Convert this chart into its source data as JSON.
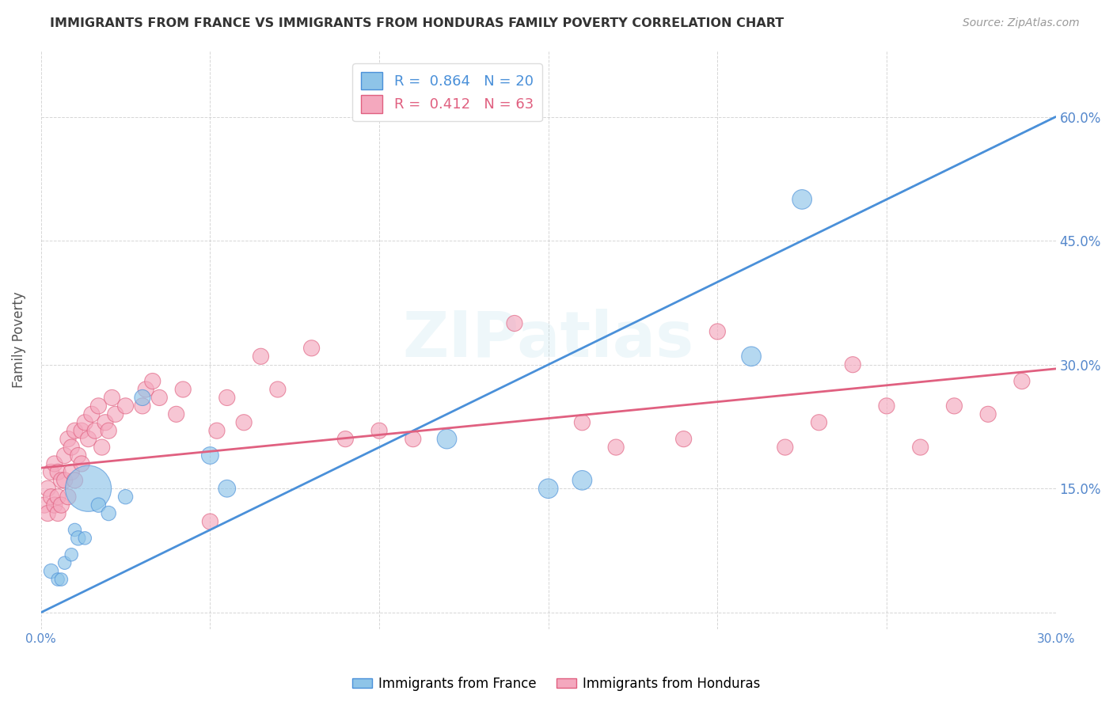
{
  "title": "IMMIGRANTS FROM FRANCE VS IMMIGRANTS FROM HONDURAS FAMILY POVERTY CORRELATION CHART",
  "source": "Source: ZipAtlas.com",
  "ylabel": "Family Poverty",
  "xlim": [
    0.0,
    0.3
  ],
  "ylim": [
    -0.02,
    0.68
  ],
  "yticks": [
    0.0,
    0.15,
    0.3,
    0.45,
    0.6
  ],
  "xticks": [
    0.0,
    0.05,
    0.1,
    0.15,
    0.2,
    0.25,
    0.3
  ],
  "france_R": 0.864,
  "france_N": 20,
  "honduras_R": 0.412,
  "honduras_N": 63,
  "france_color": "#8ec4e8",
  "honduras_color": "#f4a8be",
  "france_line_color": "#4a90d9",
  "honduras_line_color": "#e06080",
  "axis_label_color": "#5588cc",
  "watermark": "ZIPatlas",
  "france_line_x0": 0.0,
  "france_line_y0": 0.0,
  "france_line_x1": 0.3,
  "france_line_y1": 0.6,
  "honduras_line_x0": 0.0,
  "honduras_line_y0": 0.175,
  "honduras_line_x1": 0.3,
  "honduras_line_y1": 0.295,
  "france_x": [
    0.003,
    0.005,
    0.006,
    0.007,
    0.009,
    0.01,
    0.011,
    0.013,
    0.014,
    0.017,
    0.02,
    0.025,
    0.03,
    0.05,
    0.055,
    0.12,
    0.15,
    0.16,
    0.21,
    0.225
  ],
  "france_y": [
    0.05,
    0.04,
    0.04,
    0.06,
    0.07,
    0.1,
    0.09,
    0.09,
    0.15,
    0.13,
    0.12,
    0.14,
    0.26,
    0.19,
    0.15,
    0.21,
    0.15,
    0.16,
    0.31,
    0.5
  ],
  "france_size": [
    25,
    20,
    20,
    20,
    20,
    20,
    25,
    20,
    250,
    25,
    25,
    25,
    30,
    35,
    35,
    45,
    45,
    45,
    45,
    45
  ],
  "honduras_x": [
    0.001,
    0.002,
    0.002,
    0.003,
    0.003,
    0.004,
    0.004,
    0.005,
    0.005,
    0.005,
    0.006,
    0.006,
    0.007,
    0.007,
    0.008,
    0.008,
    0.009,
    0.009,
    0.01,
    0.01,
    0.011,
    0.012,
    0.012,
    0.013,
    0.014,
    0.015,
    0.016,
    0.017,
    0.018,
    0.019,
    0.02,
    0.021,
    0.022,
    0.025,
    0.03,
    0.031,
    0.033,
    0.035,
    0.04,
    0.042,
    0.05,
    0.052,
    0.055,
    0.06,
    0.065,
    0.07,
    0.08,
    0.09,
    0.1,
    0.11,
    0.14,
    0.17,
    0.2,
    0.22,
    0.24,
    0.26,
    0.27,
    0.28,
    0.29,
    0.25,
    0.23,
    0.19,
    0.16
  ],
  "honduras_y": [
    0.13,
    0.12,
    0.15,
    0.14,
    0.17,
    0.13,
    0.18,
    0.12,
    0.14,
    0.17,
    0.13,
    0.16,
    0.16,
    0.19,
    0.14,
    0.21,
    0.17,
    0.2,
    0.16,
    0.22,
    0.19,
    0.18,
    0.22,
    0.23,
    0.21,
    0.24,
    0.22,
    0.25,
    0.2,
    0.23,
    0.22,
    0.26,
    0.24,
    0.25,
    0.25,
    0.27,
    0.28,
    0.26,
    0.24,
    0.27,
    0.11,
    0.22,
    0.26,
    0.23,
    0.31,
    0.27,
    0.32,
    0.21,
    0.22,
    0.21,
    0.35,
    0.2,
    0.34,
    0.2,
    0.3,
    0.2,
    0.25,
    0.24,
    0.28,
    0.25,
    0.23,
    0.21,
    0.23
  ],
  "honduras_size": [
    30,
    30,
    30,
    30,
    30,
    30,
    30,
    30,
    30,
    30,
    30,
    30,
    30,
    30,
    30,
    30,
    30,
    30,
    30,
    30,
    30,
    30,
    30,
    30,
    30,
    30,
    30,
    30,
    30,
    30,
    30,
    30,
    30,
    30,
    30,
    30,
    30,
    30,
    30,
    30,
    30,
    30,
    30,
    30,
    30,
    30,
    30,
    30,
    30,
    30,
    30,
    30,
    30,
    30,
    30,
    30,
    30,
    30,
    30,
    30,
    30,
    30,
    30
  ]
}
